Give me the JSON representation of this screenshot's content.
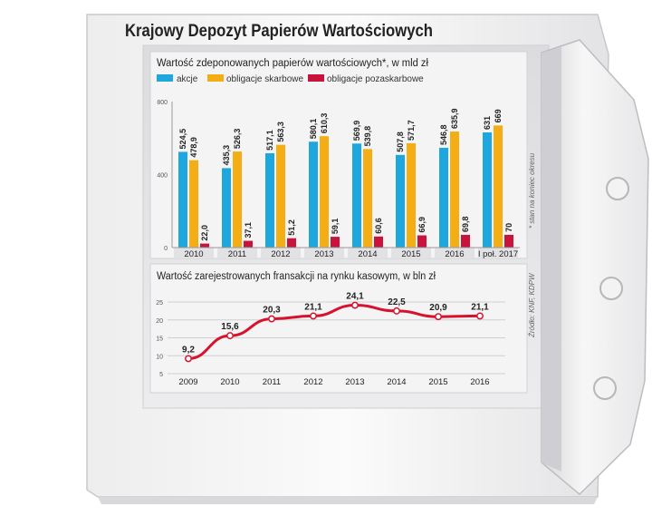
{
  "title": "Krajowy Depozyt Papierów Wartościowych",
  "side_note": "* stan na koniec okresu",
  "source_note": "Źródło: KNF, KDPW",
  "colors": {
    "akcje": "#1ea6de",
    "obligacje_skarbowe": "#f2ae14",
    "obligacje_pozaskarbowe": "#c8143c",
    "line": "#d6122f",
    "panel": "#e4e4e6"
  },
  "chart_data": [
    {
      "type": "bar",
      "title": "Wartość zdeponowanych papierów wartościowych*, w mld zł",
      "categories": [
        "2010",
        "2011",
        "2012",
        "2013",
        "2014",
        "2015",
        "2016",
        "I poł. 2017"
      ],
      "series": [
        {
          "name": "akcje",
          "values": [
            524.5,
            435.3,
            517.1,
            580.1,
            569.9,
            507.8,
            546.8,
            631
          ],
          "labels": [
            "524,5",
            "435,3",
            "517,1",
            "580,1",
            "569,9",
            "507,8",
            "546,8",
            "631"
          ]
        },
        {
          "name": "obligacje skarbowe",
          "values": [
            478.9,
            526.3,
            563.3,
            610.3,
            539.8,
            571.7,
            635.9,
            669
          ],
          "labels": [
            "478,9",
            "526,3",
            "563,3",
            "610,3",
            "539,8",
            "571,7",
            "635,9",
            "669"
          ]
        },
        {
          "name": "obligacje pozaskarbowe",
          "values": [
            22.0,
            37.1,
            51.2,
            59.1,
            60.6,
            66.9,
            69.8,
            70
          ],
          "labels": [
            "22,0",
            "37,1",
            "51,2",
            "59,1",
            "60,6",
            "66,9",
            "69,8",
            "70"
          ]
        }
      ],
      "yticks": [
        "0",
        "400",
        "800"
      ],
      "ylim": [
        0,
        800
      ],
      "legend": "top-left"
    },
    {
      "type": "line",
      "title": "Wartość zarejestrowanych fransakcji na rynku kasowym, w bln zł",
      "x": [
        "2009",
        "2010",
        "2011",
        "2012",
        "2013",
        "2014",
        "2015",
        "2016"
      ],
      "values": [
        9.2,
        15.6,
        20.3,
        21.1,
        24.1,
        22.5,
        20.9,
        21.1
      ],
      "labels": [
        "9,2",
        "15,6",
        "20,3",
        "21,1",
        "24,1",
        "22,5",
        "20,9",
        "21,1"
      ],
      "yticks": [
        "5",
        "10",
        "15",
        "20",
        "25"
      ],
      "ylim": [
        5,
        25
      ]
    }
  ]
}
